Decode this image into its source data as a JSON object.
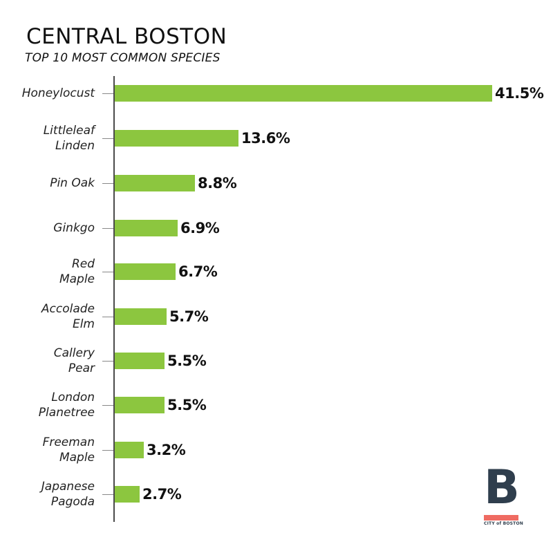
{
  "header": {
    "title": "CENTRAL BOSTON",
    "subtitle": "TOP 10 MOST COMMON SPECIES"
  },
  "logo": {
    "letter": "B",
    "text": "CITY of BOSTON",
    "colors": {
      "letter": "#2f3e4d",
      "bar": "#ef6b62"
    }
  },
  "colors": {
    "bar": "#8cc63f",
    "axis": "#4a4a4a"
  },
  "chart_data": {
    "type": "bar",
    "orientation": "horizontal",
    "title": "CENTRAL BOSTON",
    "subtitle": "TOP 10 MOST COMMON SPECIES",
    "xlabel": "",
    "ylabel": "",
    "grid": false,
    "legend": null,
    "categories": [
      [
        "Honeylocust"
      ],
      [
        "Littleleaf",
        "Linden"
      ],
      [
        "Pin Oak"
      ],
      [
        "Ginkgo"
      ],
      [
        "Red",
        "Maple"
      ],
      [
        "Accolade",
        "Elm"
      ],
      [
        "Callery",
        "Pear"
      ],
      [
        "London",
        "Planetree"
      ],
      [
        "Freeman",
        "Maple"
      ],
      [
        "Japanese",
        "Pagoda"
      ]
    ],
    "values": [
      41.5,
      13.6,
      8.8,
      6.9,
      6.7,
      5.7,
      5.5,
      5.5,
      3.2,
      2.7
    ],
    "value_labels": [
      "41.5%",
      "13.6%",
      "8.8%",
      "6.9%",
      "6.7%",
      "5.7%",
      "5.5%",
      "5.5%",
      "3.2%",
      "2.7%"
    ],
    "unit": "%"
  }
}
